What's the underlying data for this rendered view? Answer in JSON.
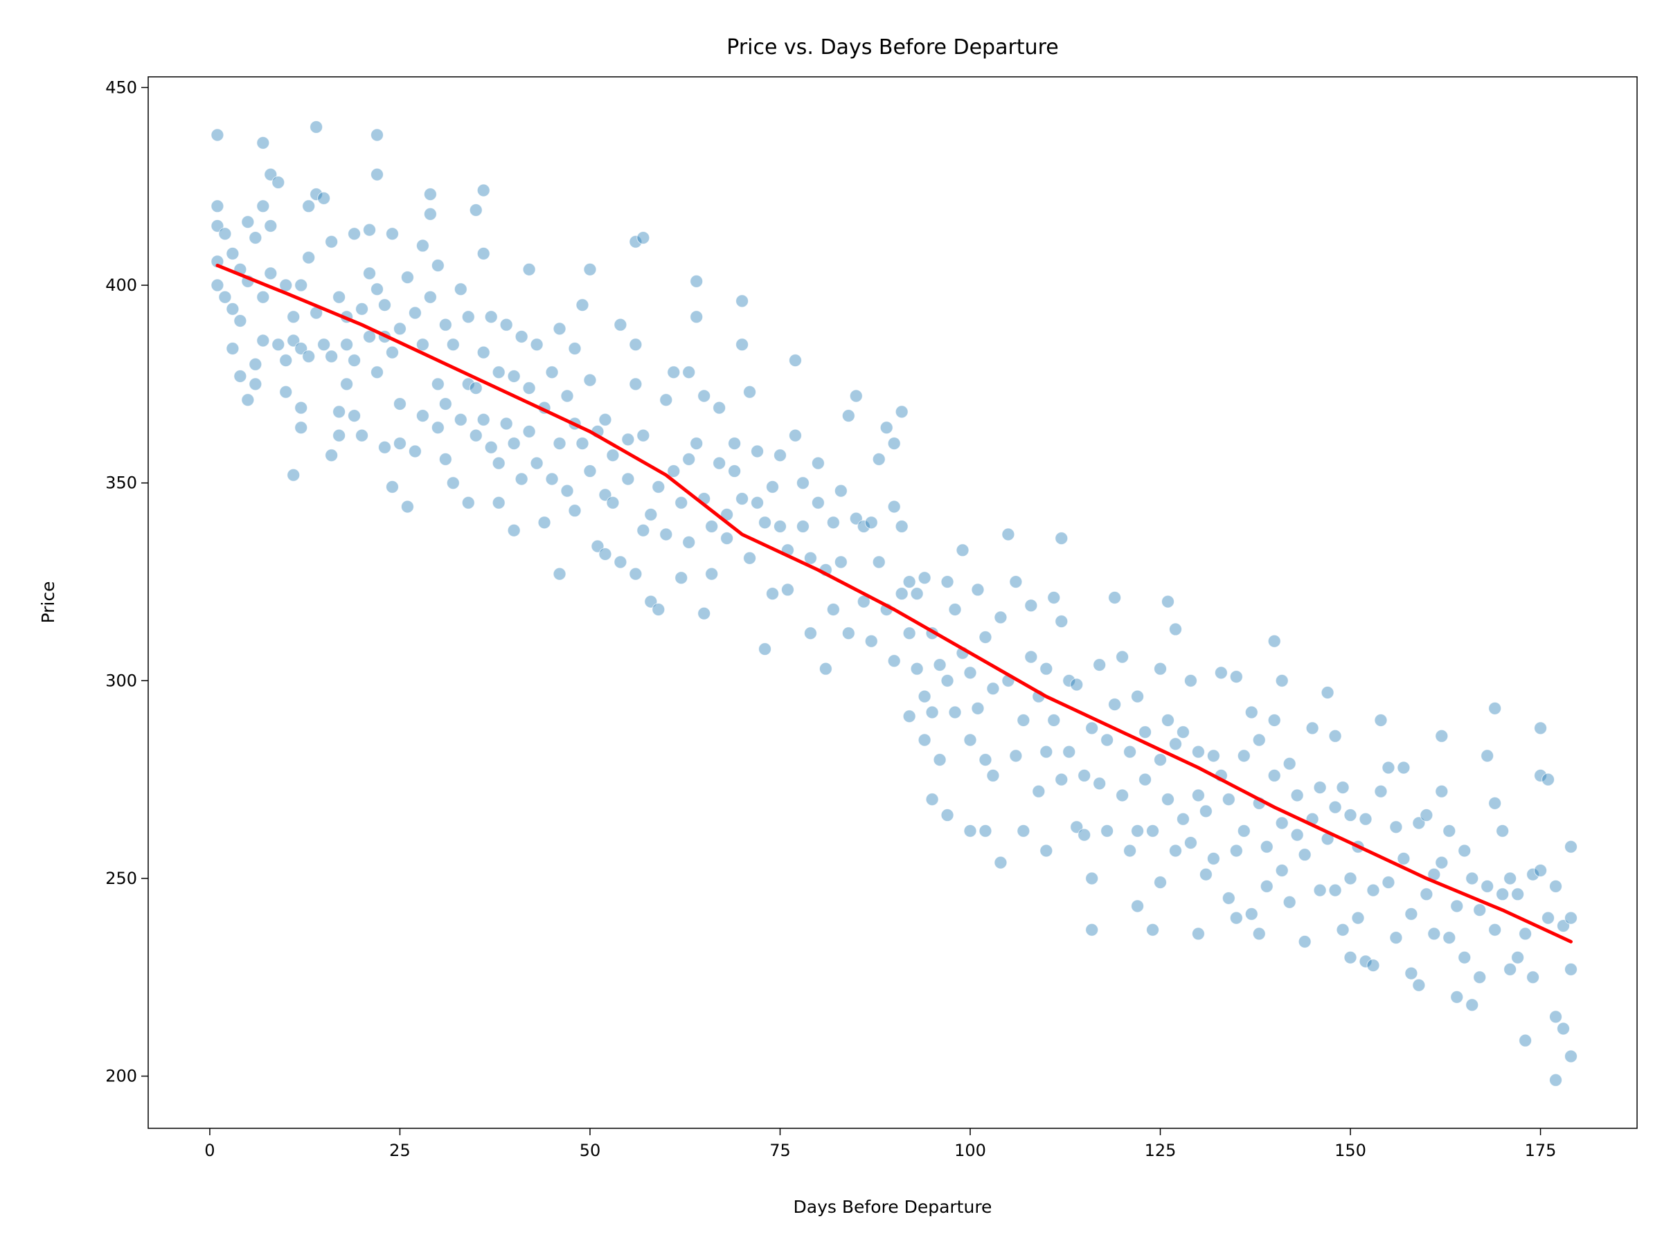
{
  "chart_data": {
    "type": "scatter",
    "title": "Price vs. Days Before Departure",
    "x_label": "Days Before Departure",
    "y_label": "Price",
    "xlim": [
      -8.1,
      187.7
    ],
    "ylim": [
      186.8,
      452.7
    ],
    "xticks": [
      0,
      25,
      50,
      75,
      100,
      125,
      150,
      175
    ],
    "yticks": [
      200,
      250,
      300,
      350,
      400,
      450
    ],
    "series": [
      {
        "type": "scatter",
        "color": "#1f77b4",
        "x": [
          1,
          1,
          1,
          1,
          1,
          2,
          2,
          3,
          3,
          3,
          4,
          4,
          4,
          5,
          5,
          5,
          6,
          6,
          6,
          7,
          7,
          7,
          7,
          8,
          8,
          8,
          9,
          9,
          10,
          10,
          10,
          11,
          11,
          11,
          12,
          12,
          12,
          12,
          13,
          13,
          13,
          14,
          14,
          14,
          15,
          15,
          16,
          16,
          16,
          17,
          17,
          17,
          18,
          18,
          18,
          19,
          19,
          19,
          20,
          20,
          21,
          21,
          21,
          22,
          22,
          22,
          22,
          23,
          23,
          23,
          24,
          24,
          24,
          25,
          25,
          25,
          26,
          26,
          27,
          27,
          28,
          28,
          28,
          29,
          29,
          29,
          30,
          30,
          30,
          31,
          31,
          31,
          32,
          32,
          33,
          33,
          34,
          34,
          34,
          35,
          35,
          35,
          36,
          36,
          36,
          36,
          37,
          37,
          38,
          38,
          38,
          39,
          39,
          40,
          40,
          40,
          41,
          41,
          42,
          42,
          42,
          43,
          43,
          44,
          44,
          45,
          45,
          46,
          46,
          46,
          47,
          47,
          48,
          48,
          48,
          49,
          49,
          50,
          50,
          50,
          51,
          51,
          52,
          52,
          52,
          53,
          53,
          54,
          54,
          55,
          55,
          56,
          56,
          56,
          56,
          57,
          57,
          57,
          58,
          58,
          59,
          59,
          60,
          60,
          61,
          61,
          62,
          62,
          63,
          63,
          63,
          64,
          64,
          64,
          65,
          65,
          65,
          66,
          66,
          67,
          67,
          68,
          68,
          69,
          69,
          70,
          70,
          70,
          71,
          71,
          72,
          72,
          73,
          73,
          74,
          74,
          75,
          75,
          76,
          76,
          77,
          77,
          78,
          78,
          79,
          79,
          80,
          80,
          81,
          81,
          82,
          82,
          83,
          83,
          84,
          84,
          85,
          85,
          86,
          86,
          87,
          87,
          88,
          88,
          89,
          89,
          90,
          90,
          90,
          91,
          91,
          91,
          92,
          92,
          92,
          93,
          93,
          94,
          94,
          94,
          95,
          95,
          95,
          96,
          96,
          97,
          97,
          97,
          98,
          98,
          99,
          99,
          100,
          100,
          100,
          101,
          101,
          102,
          102,
          102,
          103,
          103,
          104,
          104,
          105,
          105,
          106,
          106,
          107,
          107,
          108,
          108,
          109,
          109,
          110,
          110,
          110,
          111,
          111,
          112,
          112,
          112,
          113,
          113,
          114,
          114,
          115,
          115,
          116,
          116,
          116,
          117,
          117,
          118,
          118,
          119,
          119,
          120,
          120,
          121,
          121,
          122,
          122,
          122,
          123,
          123,
          124,
          124,
          125,
          125,
          125,
          126,
          126,
          126,
          127,
          127,
          127,
          128,
          128,
          129,
          129,
          130,
          130,
          130,
          131,
          131,
          132,
          132,
          133,
          133,
          134,
          134,
          135,
          135,
          135,
          136,
          136,
          137,
          137,
          138,
          138,
          138,
          139,
          139,
          140,
          140,
          140,
          141,
          141,
          141,
          142,
          142,
          143,
          143,
          144,
          144,
          145,
          145,
          146,
          146,
          147,
          147,
          148,
          148,
          148,
          149,
          149,
          150,
          150,
          150,
          151,
          151,
          152,
          152,
          153,
          153,
          154,
          154,
          155,
          155,
          156,
          156,
          157,
          157,
          158,
          158,
          159,
          159,
          160,
          160,
          161,
          161,
          162,
          162,
          162,
          163,
          163,
          164,
          164,
          165,
          165,
          166,
          166,
          167,
          167,
          168,
          168,
          169,
          169,
          169,
          170,
          170,
          171,
          171,
          172,
          172,
          173,
          173,
          174,
          174,
          175,
          175,
          175,
          176,
          176,
          177,
          177,
          177,
          178,
          178,
          179,
          179,
          179,
          179
        ],
        "y": [
          438,
          420,
          415,
          406,
          400,
          413,
          397,
          408,
          384,
          394,
          391,
          404,
          377,
          416,
          371,
          401,
          412,
          380,
          375,
          436,
          420,
          386,
          397,
          428,
          415,
          403,
          426,
          385,
          381,
          373,
          400,
          392,
          352,
          386,
          364,
          369,
          384,
          400,
          407,
          382,
          420,
          440,
          423,
          393,
          422,
          385,
          411,
          357,
          382,
          397,
          362,
          368,
          392,
          375,
          385,
          413,
          381,
          367,
          394,
          362,
          414,
          403,
          387,
          438,
          428,
          399,
          378,
          359,
          395,
          387,
          413,
          349,
          383,
          389,
          370,
          360,
          344,
          402,
          393,
          358,
          410,
          385,
          367,
          423,
          418,
          397,
          375,
          405,
          364,
          390,
          356,
          370,
          350,
          385,
          399,
          366,
          345,
          392,
          375,
          419,
          374,
          362,
          424,
          408,
          383,
          366,
          392,
          359,
          355,
          378,
          345,
          390,
          365,
          338,
          377,
          360,
          351,
          387,
          404,
          374,
          363,
          385,
          355,
          340,
          369,
          378,
          351,
          389,
          360,
          327,
          372,
          348,
          384,
          365,
          343,
          395,
          360,
          404,
          376,
          353,
          334,
          363,
          366,
          347,
          332,
          345,
          357,
          390,
          330,
          361,
          351,
          411,
          385,
          375,
          327,
          412,
          362,
          338,
          342,
          320,
          349,
          318,
          371,
          337,
          378,
          353,
          326,
          345,
          378,
          356,
          335,
          401,
          392,
          360,
          317,
          346,
          372,
          327,
          339,
          355,
          369,
          336,
          342,
          353,
          360,
          396,
          385,
          346,
          373,
          331,
          358,
          345,
          308,
          340,
          349,
          322,
          357,
          339,
          333,
          323,
          381,
          362,
          339,
          350,
          312,
          331,
          345,
          355,
          303,
          328,
          340,
          318,
          348,
          330,
          367,
          312,
          372,
          341,
          339,
          320,
          340,
          310,
          356,
          330,
          364,
          318,
          360,
          344,
          305,
          368,
          339,
          322,
          325,
          291,
          312,
          322,
          303,
          326,
          296,
          285,
          312,
          292,
          270,
          304,
          280,
          300,
          266,
          325,
          318,
          292,
          333,
          307,
          302,
          262,
          285,
          323,
          293,
          311,
          280,
          262,
          298,
          276,
          316,
          254,
          337,
          300,
          325,
          281,
          290,
          262,
          319,
          306,
          272,
          296,
          303,
          282,
          257,
          321,
          290,
          336,
          315,
          275,
          300,
          282,
          299,
          263,
          276,
          261,
          250,
          237,
          288,
          304,
          274,
          285,
          262,
          321,
          294,
          306,
          271,
          282,
          257,
          296,
          262,
          243,
          275,
          287,
          237,
          262,
          303,
          280,
          249,
          320,
          290,
          270,
          313,
          284,
          257,
          287,
          265,
          259,
          300,
          282,
          271,
          236,
          267,
          251,
          281,
          255,
          302,
          276,
          270,
          245,
          301,
          257,
          240,
          281,
          262,
          292,
          241,
          285,
          236,
          269,
          258,
          248,
          310,
          290,
          276,
          300,
          264,
          252,
          279,
          244,
          261,
          271,
          256,
          234,
          288,
          265,
          273,
          247,
          297,
          260,
          286,
          268,
          247,
          273,
          237,
          266,
          250,
          230,
          258,
          240,
          265,
          229,
          247,
          228,
          290,
          272,
          278,
          249,
          263,
          235,
          278,
          255,
          241,
          226,
          264,
          223,
          266,
          246,
          251,
          236,
          286,
          272,
          254,
          262,
          235,
          243,
          220,
          257,
          230,
          250,
          218,
          242,
          225,
          281,
          248,
          293,
          269,
          237,
          262,
          246,
          250,
          227,
          246,
          230,
          236,
          209,
          251,
          225,
          288,
          276,
          252,
          275,
          240,
          248,
          199,
          215,
          238,
          212,
          258,
          240,
          227,
          205
        ]
      },
      {
        "type": "line",
        "color": "#ff0000",
        "x": [
          1,
          10,
          20,
          30,
          40,
          50,
          60,
          70,
          80,
          90,
          100,
          110,
          120,
          130,
          140,
          150,
          160,
          170,
          179
        ],
        "y": [
          405,
          398,
          390,
          381,
          372,
          363,
          352,
          337,
          328,
          318,
          307,
          296,
          287,
          278,
          268,
          259,
          250,
          242,
          234
        ]
      }
    ]
  }
}
